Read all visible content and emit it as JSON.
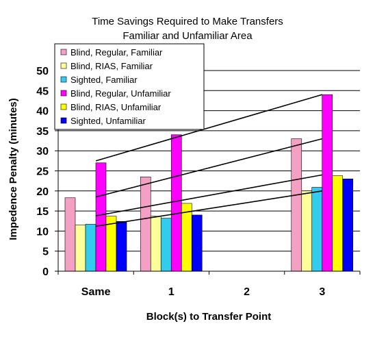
{
  "chart_data": {
    "type": "bar",
    "title": "Time Savings Required to Make Transfers",
    "subtitle": "Familiar and Unfamiliar Area",
    "xlabel": "Block(s) to Transfer Point",
    "ylabel": "Impedence Penalty (minutes)",
    "categories": [
      "Same",
      "1",
      "2",
      "3"
    ],
    "ylim": [
      0,
      50
    ],
    "yticks": [
      0,
      5,
      10,
      15,
      20,
      25,
      30,
      35,
      40,
      45,
      50
    ],
    "grid": true,
    "legend": "top-left",
    "series": [
      {
        "name": "Blind, Regular, Familiar",
        "color": "#f4a0c4",
        "values": [
          18.3,
          23.5,
          null,
          33
        ]
      },
      {
        "name": "Blind, RIAS, Familiar",
        "color": "#ffff99",
        "values": [
          11.5,
          13.7,
          null,
          20
        ]
      },
      {
        "name": "Sighted, Familiar",
        "color": "#33ccee",
        "values": [
          11.7,
          13.2,
          null,
          20.9
        ]
      },
      {
        "name": "Blind, Regular, Unfamiliar",
        "color": "#ff00ff",
        "values": [
          27,
          34,
          null,
          44
        ]
      },
      {
        "name": "Blind, RIAS, Unfamiliar",
        "color": "#ffff00",
        "values": [
          13.7,
          16.9,
          null,
          23.8
        ]
      },
      {
        "name": "Sighted, Unfamiliar",
        "color": "#0000ff",
        "values": [
          12.4,
          14,
          null,
          23
        ]
      }
    ],
    "trendlines": [
      {
        "x": [
          "Same",
          "3"
        ],
        "y": [
          27.5,
          44
        ]
      },
      {
        "x": [
          "Same",
          "3"
        ],
        "y": [
          18.5,
          33
        ]
      },
      {
        "x": [
          "Same",
          "3"
        ],
        "y": [
          13.8,
          24
        ]
      },
      {
        "x": [
          "Same",
          "3"
        ],
        "y": [
          11.2,
          20
        ]
      }
    ]
  }
}
